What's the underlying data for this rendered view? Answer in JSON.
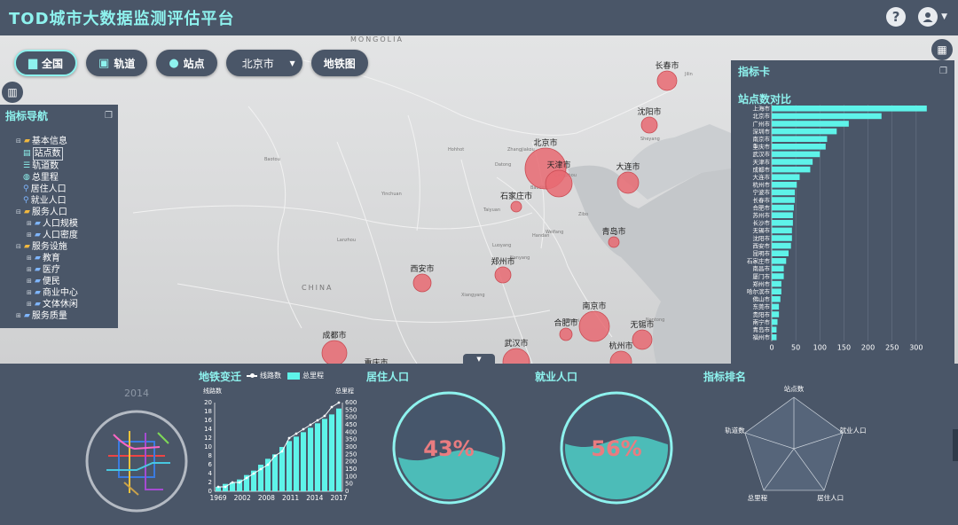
{
  "header": {
    "title": "TOD城市大数据监测评估平台",
    "help_icon": "?",
    "user_icon": "user"
  },
  "toolbar": {
    "all": "全国",
    "rail": "轨道",
    "station": "站点",
    "city_select": "北京市",
    "metro_map": "地铁图"
  },
  "map": {
    "country_labels": [
      "MONGOLIA",
      "CHINA"
    ],
    "cities": [
      {
        "name": "北京市",
        "bubble": 1
      },
      {
        "name": "天津市",
        "bubble": 0.6
      },
      {
        "name": "石家庄市",
        "bubble": 0.15
      },
      {
        "name": "沈阳市",
        "bubble": 0.3
      },
      {
        "name": "大连市",
        "bubble": 0.45
      },
      {
        "name": "长春市",
        "bubble": 0.4
      },
      {
        "name": "青岛市",
        "bubble": 0.15
      },
      {
        "name": "西安市",
        "bubble": 0.35
      },
      {
        "name": "郑州市",
        "bubble": 0.3
      },
      {
        "name": "南京市",
        "bubble": 0.7
      },
      {
        "name": "合肥市",
        "bubble": 0.2
      },
      {
        "name": "无锡市",
        "bubble": 0.4
      },
      {
        "name": "成都市",
        "bubble": 0.55
      },
      {
        "name": "武汉市",
        "bubble": 0.6
      },
      {
        "name": "杭州市",
        "bubble": 0.45
      },
      {
        "name": "重庆市",
        "bubble": 0.5
      }
    ],
    "places": [
      "Sheyang",
      "Jilin",
      "Baotou",
      "Datong",
      "Zhangjiakou",
      "Hohhot",
      "Yinchuan",
      "Baoding",
      "Cangzhou",
      "Taiyuan",
      "Zibo",
      "Weifang",
      "Handan",
      "Lanzhou",
      "Luoyang",
      "Nanyang",
      "Xiangyang",
      "Hefei",
      "Nantong"
    ]
  },
  "nav": {
    "title": "指标导航",
    "groups": [
      {
        "label": "基本信息",
        "items": [
          "站点数",
          "轨道数",
          "总里程",
          "居住人口",
          "就业人口"
        ]
      },
      {
        "label": "服务人口",
        "items": [
          "人口规模",
          "人口密度"
        ]
      },
      {
        "label": "服务设施",
        "items": [
          "教育",
          "医疗",
          "便民",
          "商业中心",
          "文体休闲"
        ]
      },
      {
        "label": "服务质量",
        "items": []
      }
    ]
  },
  "card": {
    "title": "指标卡",
    "subtitle": "站点数对比"
  },
  "bottom": {
    "metro_title": "地铁变迁",
    "legend_line": "线路数",
    "legend_bar": "总里程",
    "year": "2014",
    "left_axis": "线路数",
    "right_axis": "总里程",
    "residence_title": "居住人口",
    "residence_pct": "43%",
    "residence_value": 0.43,
    "employment_title": "就业人口",
    "employment_pct": "56%",
    "employment_value": 0.56,
    "ranking_title": "指标排名",
    "colors": {
      "accent": "#8ef2ee",
      "panel": "#4a5668",
      "bubble": "#e76a72",
      "bar": "#5ef3e9"
    }
  },
  "chart_data": [
    {
      "type": "bar",
      "title": "站点数对比",
      "orientation": "horizontal",
      "categories": [
        "上海市",
        "北京市",
        "广州市",
        "深圳市",
        "南京市",
        "重庆市",
        "武汉市",
        "天津市",
        "成都市",
        "大连市",
        "杭州市",
        "宁波市",
        "长春市",
        "合肥市",
        "苏州市",
        "长沙市",
        "无锡市",
        "沈阳市",
        "西安市",
        "昆明市",
        "石家庄市",
        "南昌市",
        "厦门市",
        "郑州市",
        "哈尔滨市",
        "佛山市",
        "东莞市",
        "贵阳市",
        "南宁市",
        "青岛市",
        "福州市"
      ],
      "values": [
        322,
        228,
        160,
        135,
        115,
        112,
        100,
        85,
        80,
        58,
        52,
        48,
        48,
        46,
        44,
        44,
        42,
        42,
        40,
        35,
        30,
        25,
        25,
        20,
        20,
        18,
        15,
        15,
        12,
        10,
        10
      ],
      "xlim": [
        0,
        350
      ],
      "xticks": [
        0,
        50,
        100,
        150,
        200,
        250,
        300
      ]
    },
    {
      "type": "bar",
      "title": "地铁变迁",
      "series": [
        {
          "name": "总里程",
          "axis": "right",
          "values": [
            30,
            50,
            60,
            80,
            110,
            140,
            180,
            220,
            250,
            300,
            340,
            370,
            400,
            430,
            460,
            490,
            520,
            560
          ]
        },
        {
          "name": "线路数",
          "axis": "left",
          "type": "line",
          "values": [
            1,
            1,
            2,
            2,
            3,
            4,
            5,
            6,
            8,
            9,
            12,
            13,
            14,
            15,
            16,
            17,
            19,
            20
          ]
        }
      ],
      "x_tick_labels": [
        "1969",
        "2002",
        "2008",
        "2011",
        "2014",
        "2017"
      ],
      "left_ylim": [
        0,
        20
      ],
      "left_ticks": [
        0,
        2,
        4,
        6,
        8,
        10,
        12,
        14,
        16,
        18,
        20
      ],
      "right_ylim": [
        0,
        600
      ],
      "right_ticks": [
        0,
        50,
        100,
        150,
        200,
        250,
        300,
        350,
        400,
        450,
        500,
        550,
        600
      ]
    },
    {
      "type": "radar",
      "title": "指标排名",
      "axes": [
        "站点数",
        "就业人口",
        "居住人口",
        "总里程",
        "轨道数"
      ],
      "rings": 5
    }
  ]
}
